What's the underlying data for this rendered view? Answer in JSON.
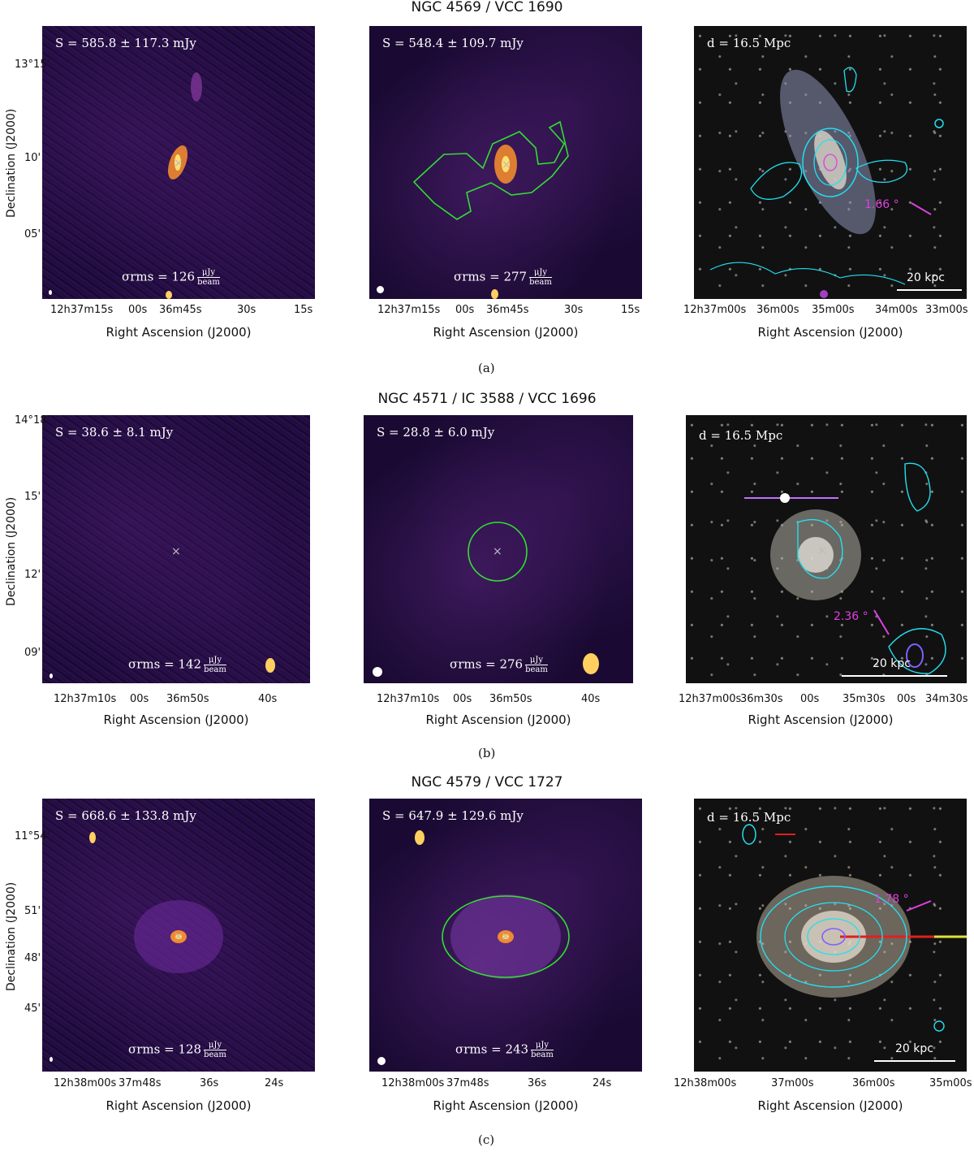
{
  "rows": [
    {
      "title": "NGC 4569 / VCC 1690",
      "sublabel": "(a)",
      "panel1": {
        "flux": "S = 585.8 ± 117.3 mJy",
        "rms_value": "126"
      },
      "panel2": {
        "flux": "S = 548.4 ± 109.7 mJy",
        "rms_value": "277"
      },
      "panel3": {
        "distance": "d = 16.5 Mpc",
        "angle": "1.66 °",
        "scale": "20 kpc"
      },
      "yticks": [
        "13°15'",
        "10'",
        "05'"
      ],
      "xticks_radio": [
        "12h37m15s",
        "00s",
        "36m45s",
        "30s",
        "15s"
      ],
      "xticks_optical": [
        "12h37m00s",
        "36m00s",
        "35m00s",
        "34m00s",
        "33m00s"
      ]
    },
    {
      "title": "NGC 4571 / IC 3588 / VCC 1696",
      "sublabel": "(b)",
      "panel1": {
        "flux": "S = 38.6 ± 8.1 mJy",
        "rms_value": "142"
      },
      "panel2": {
        "flux": "S = 28.8 ± 6.0 mJy",
        "rms_value": "276"
      },
      "panel3": {
        "distance": "d = 16.5 Mpc",
        "angle": "2.36 °",
        "scale": "20 kpc"
      },
      "yticks": [
        "14°18'",
        "15'",
        "12'",
        "09'"
      ],
      "xticks_radio": [
        "12h37m10s",
        "00s",
        "36m50s",
        "40s"
      ],
      "xticks_optical": [
        "12h37m00s",
        "36m30s",
        "00s",
        "35m30s",
        "00s",
        "34m30s"
      ]
    },
    {
      "title": "NGC 4579 / VCC 1727",
      "sublabel": "(c)",
      "panel1": {
        "flux": "S = 668.6 ± 133.8 mJy",
        "rms_value": "128"
      },
      "panel2": {
        "flux": "S = 647.9 ± 129.6 mJy",
        "rms_value": "243"
      },
      "panel3": {
        "distance": "d = 16.5 Mpc",
        "angle": "1.78 °",
        "scale": "20 kpc"
      },
      "yticks": [
        "11°54'",
        "51'",
        "48'",
        "45'"
      ],
      "xticks_radio": [
        "12h38m00s",
        "37m48s",
        "36s",
        "24s"
      ],
      "xticks_optical": [
        "12h38m00s",
        "37m00s",
        "36m00s",
        "35m00s"
      ]
    }
  ],
  "axes": {
    "xlabel": "Right Ascension (J2000)",
    "ylabel": "Declination (J2000)",
    "rms_prefix": "σrms = ",
    "unit_num": "μJy",
    "unit_den": "beam"
  },
  "colors": {
    "contour": "#22e0f0",
    "region": "#33dd33",
    "angle": "#e040e0"
  }
}
